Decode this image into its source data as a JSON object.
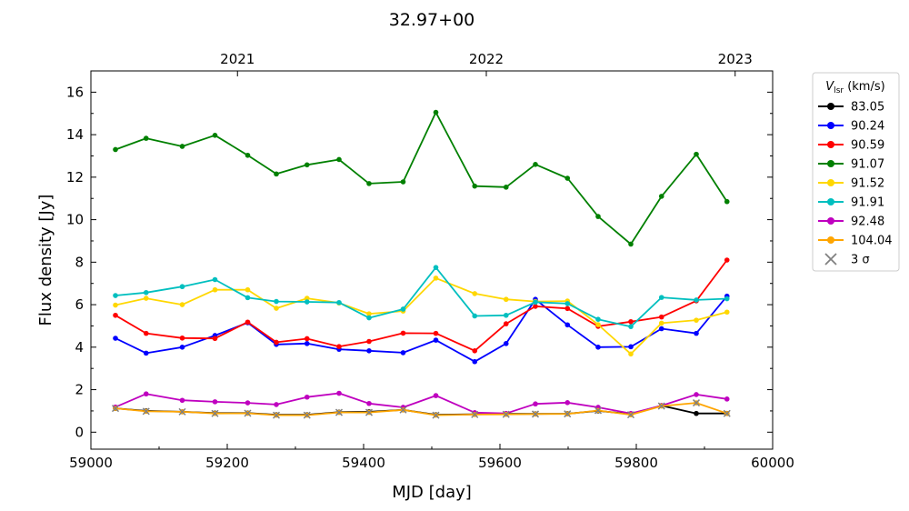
{
  "chart_data": {
    "type": "line",
    "title": "32.97+00",
    "xlabel": "MJD [day]",
    "ylabel": "Flux density [Jy]",
    "xlim": [
      59000,
      60000
    ],
    "ylim": [
      -0.8,
      17.0
    ],
    "x_ticks": [
      59000,
      59200,
      59400,
      59600,
      59800,
      60000
    ],
    "y_ticks": [
      0,
      2,
      4,
      6,
      8,
      10,
      12,
      14,
      16
    ],
    "top_axis": {
      "labels": [
        "2021",
        "2022",
        "2023"
      ],
      "mjd": [
        59215,
        59580,
        59945
      ]
    },
    "legend": {
      "title_main": "V",
      "title_sub": "lsr",
      "title_unit": " (km/s)",
      "placement": "outside-right",
      "sigma_label": "3 σ",
      "sigma_color": "#808080"
    },
    "x": [
      59036,
      59081,
      59134,
      59182,
      59230,
      59272,
      59317,
      59364,
      59408,
      59458,
      59506,
      59563,
      59609,
      59652,
      59699,
      59744,
      59792,
      59837,
      59888,
      59933
    ],
    "series": [
      {
        "name": "83.05",
        "color": "#000000",
        "values": [
          1.12,
          1.0,
          0.96,
          0.9,
          0.9,
          0.82,
          0.82,
          0.94,
          0.96,
          1.05,
          0.82,
          0.84,
          0.86,
          0.86,
          0.87,
          1.0,
          0.85,
          1.25,
          0.88,
          0.88
        ]
      },
      {
        "name": "90.24",
        "color": "#0000ff",
        "values": [
          4.42,
          3.72,
          4.0,
          4.55,
          5.15,
          4.13,
          4.17,
          3.9,
          3.83,
          3.74,
          4.33,
          3.32,
          4.17,
          6.25,
          5.05,
          4.0,
          4.02,
          4.87,
          4.65,
          6.4
        ]
      },
      {
        "name": "90.59",
        "color": "#ff0000",
        "values": [
          5.5,
          4.65,
          4.43,
          4.41,
          5.18,
          4.23,
          4.4,
          4.03,
          4.27,
          4.66,
          4.65,
          3.83,
          5.1,
          5.92,
          5.82,
          4.98,
          5.2,
          5.42,
          6.18,
          8.1
        ]
      },
      {
        "name": "91.07",
        "color": "#008000",
        "values": [
          13.3,
          13.83,
          13.45,
          13.97,
          13.03,
          12.15,
          12.58,
          12.83,
          11.7,
          11.78,
          15.05,
          11.58,
          11.53,
          12.6,
          11.95,
          10.15,
          8.85,
          11.1,
          13.08,
          10.85
        ]
      },
      {
        "name": "91.52",
        "color": "#ffd700",
        "values": [
          5.98,
          6.3,
          6.0,
          6.7,
          6.7,
          5.83,
          6.3,
          6.08,
          5.57,
          5.7,
          7.25,
          6.52,
          6.25,
          6.15,
          6.17,
          5.06,
          3.68,
          5.13,
          5.27,
          5.65
        ]
      },
      {
        "name": "91.91",
        "color": "#00bfbf",
        "values": [
          6.43,
          6.57,
          6.85,
          7.18,
          6.33,
          6.15,
          6.13,
          6.1,
          5.38,
          5.79,
          7.75,
          5.47,
          5.5,
          6.12,
          6.05,
          5.31,
          4.97,
          6.34,
          6.22,
          6.28
        ]
      },
      {
        "name": "92.48",
        "color": "#bf00bf",
        "values": [
          1.18,
          1.8,
          1.5,
          1.43,
          1.38,
          1.3,
          1.65,
          1.83,
          1.35,
          1.17,
          1.72,
          0.92,
          0.88,
          1.33,
          1.39,
          1.17,
          0.88,
          1.25,
          1.77,
          1.56
        ]
      },
      {
        "name": "104.04",
        "color": "#ffa500",
        "values": [
          1.12,
          0.98,
          0.96,
          0.88,
          0.89,
          0.8,
          0.8,
          0.93,
          0.93,
          1.05,
          0.8,
          0.83,
          0.84,
          0.85,
          0.86,
          1.02,
          0.82,
          1.23,
          1.38,
          0.88
        ]
      }
    ],
    "sigma3": [
      1.12,
      0.98,
      0.96,
      0.88,
      0.89,
      0.8,
      0.8,
      0.93,
      0.93,
      1.05,
      0.8,
      0.83,
      0.84,
      0.85,
      0.86,
      1.02,
      0.82,
      1.23,
      1.38,
      0.88
    ],
    "grid": false
  }
}
